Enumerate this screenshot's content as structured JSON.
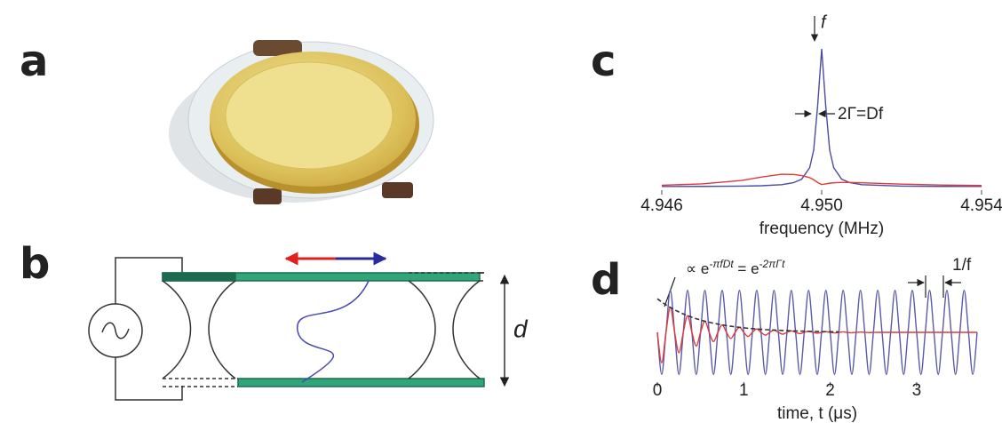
{
  "panels": {
    "a": "a",
    "b": "b",
    "c": "c",
    "d": "d"
  },
  "diagram_b": {
    "label": "d"
  },
  "chart_data": [
    {
      "type": "line",
      "xlabel": "frequency (MHz)",
      "x": [
        4.946,
        4.947,
        4.948,
        4.9485,
        4.949,
        4.9493,
        4.9495,
        4.9497,
        4.9498,
        4.9499,
        4.95,
        4.9501,
        4.9502,
        4.9503,
        4.9505,
        4.9507,
        4.951,
        4.952,
        4.953,
        4.954
      ],
      "series": [
        {
          "color": "#4b4ba0",
          "values": [
            0.001,
            0.0016,
            0.0036,
            0.0064,
            0.014,
            0.029,
            0.054,
            0.138,
            0.265,
            0.59,
            1,
            0.59,
            0.265,
            0.138,
            0.054,
            0.029,
            0.014,
            0.0036,
            0.0016,
            0.001
          ]
        },
        {
          "color": "#e03a3a",
          "values": [
            0.01,
            0.02,
            0.045,
            0.07,
            0.09,
            0.088,
            0.08,
            0.065,
            0.05,
            0.03,
            0.015,
            0.02,
            0.025,
            0.028,
            0.03,
            0.03,
            0.028,
            0.018,
            0.012,
            0.008
          ]
        }
      ],
      "xlim": [
        4.946,
        4.954
      ],
      "xticks": [
        4.946,
        {
          "value": 4.95,
          "label": "4.950"
        },
        4.954
      ],
      "ylim": [
        0,
        1
      ],
      "annotations": {
        "peak": "f",
        "width": "2Γ=Df"
      }
    },
    {
      "type": "line",
      "xlabel": "time, t (μs)",
      "x": [
        0,
        0.05,
        0.1,
        0.15,
        0.2,
        0.25,
        0.3,
        0.35,
        0.4,
        0.45,
        0.5,
        0.55,
        0.6,
        0.65,
        0.7,
        0.75,
        0.8,
        0.85,
        0.9,
        0.95,
        1,
        1.05,
        1.1,
        1.15,
        1.2,
        1.25,
        1.3,
        1.35,
        1.4,
        1.45,
        1.5,
        1.55,
        1.6,
        1.65,
        1.7,
        1.75,
        1.8,
        1.85,
        1.9,
        1.95,
        2,
        2.05,
        2.1,
        2.15,
        2.2,
        2.25,
        2.3,
        2.35,
        2.4,
        2.45,
        2.5,
        2.55,
        2.6,
        2.65,
        2.7,
        2.75,
        2.8,
        2.85,
        2.9,
        2.95,
        3,
        3.05,
        3.1,
        3.15,
        3.2,
        3.25,
        3.3,
        3.35,
        3.4,
        3.45,
        3.5,
        3.55,
        3.6,
        3.65,
        3.7
      ],
      "series": [
        {
          "color": "#5a5aa8",
          "values": [
            0,
            -1,
            0,
            1,
            0,
            -1,
            0,
            1,
            0,
            -1,
            0,
            1,
            0,
            -1,
            0,
            1,
            0,
            -1,
            0,
            1,
            0,
            -1,
            0,
            1,
            0,
            -1,
            0,
            1,
            0,
            -1,
            0,
            1,
            0,
            -1,
            0,
            1,
            0,
            -1,
            0,
            1,
            0,
            -1,
            0,
            1,
            0,
            -1,
            0,
            1,
            0,
            -1,
            0,
            1,
            0,
            -1,
            0,
            1,
            0,
            -1,
            0,
            1,
            0,
            -1,
            0,
            1,
            0,
            -1,
            0,
            1,
            0,
            -1,
            0,
            1,
            0,
            -1,
            0
          ]
        },
        {
          "color": "#e03a3a",
          "values": [
            0,
            -0.724,
            0,
            0.593,
            0,
            -0.485,
            0,
            0.397,
            0,
            -0.325,
            0,
            0.266,
            0,
            -0.218,
            0,
            0.178,
            0,
            -0.146,
            0,
            0.12,
            0,
            -0.098,
            0,
            0.08,
            0,
            -0.066,
            0,
            0.054,
            0,
            -0.044,
            0,
            0.036,
            0,
            -0.03,
            0,
            0.024,
            0,
            -0.02,
            0,
            0.016,
            0,
            -0.013,
            0,
            0.011,
            0,
            -0.009,
            0,
            0.007,
            0,
            -0.006,
            0,
            0,
            0,
            0,
            0,
            0,
            0,
            0,
            0,
            0,
            0,
            0,
            0,
            0,
            0,
            0,
            0,
            0,
            0,
            0,
            0,
            0,
            0,
            0,
            0
          ]
        },
        {
          "color": "#333333",
          "dashed": true,
          "values": [
            0.8,
            0.724,
            0.655,
            0.593,
            0.536,
            0.485,
            0.439,
            0.397,
            0.359,
            0.325,
            0.294,
            0.266,
            0.241,
            0.218,
            0.197,
            0.178,
            0.161,
            0.146,
            0.132,
            0.12,
            0.108,
            0.098,
            0.089,
            0.08,
            0.073,
            0.066,
            0.059,
            0.054,
            0.049,
            0.044,
            0.04,
            0.036,
            0.033,
            0.03,
            0.027,
            0.024,
            0.022,
            0.02,
            0.018,
            0.016,
            0.015,
            0.013,
            0.012,
            null,
            null,
            null,
            null,
            null,
            null,
            null,
            null,
            null,
            null,
            null,
            null,
            null,
            null,
            null,
            null,
            null,
            null,
            null,
            null,
            null,
            null,
            null,
            null,
            null,
            null,
            null,
            null,
            null,
            null,
            null,
            null
          ]
        }
      ],
      "xlim": [
        0,
        3.7
      ],
      "xticks": [
        0,
        1,
        2,
        3
      ],
      "ylim": [
        -1.1,
        1.1
      ],
      "annotations": {
        "envelope": {
          "a": "∝ e",
          "b": "-πfDt",
          "c": " = e",
          "d": "-2πΓt"
        },
        "period": "1/f"
      }
    }
  ]
}
